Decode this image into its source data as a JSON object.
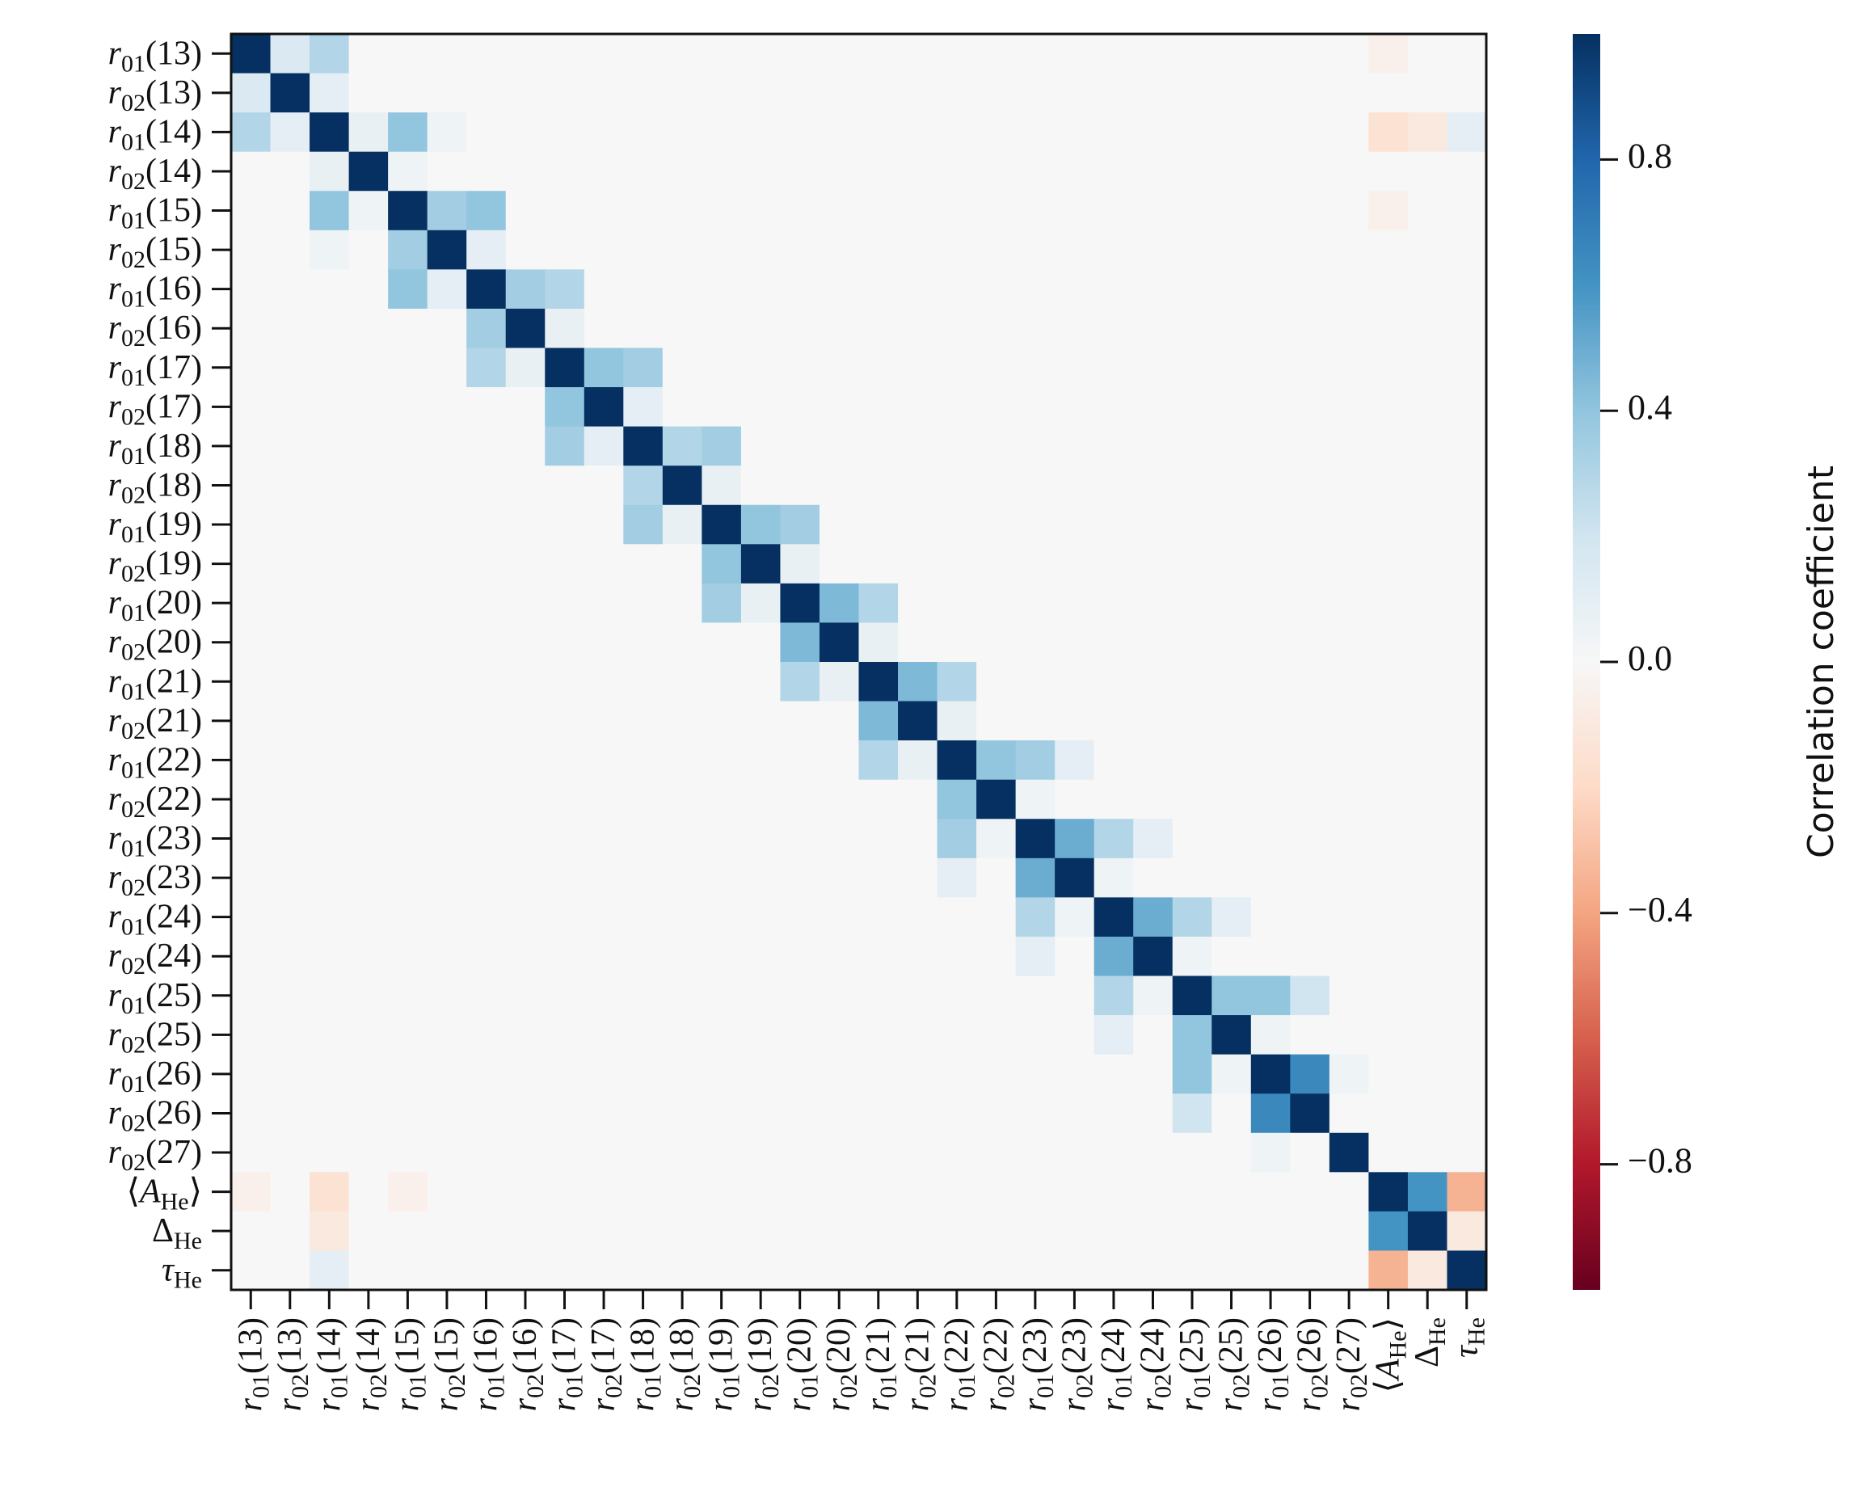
{
  "chart_data": {
    "type": "heatmap",
    "colormap": "RdBu",
    "x_categories": [
      "r01(13)",
      "r02(13)",
      "r01(14)",
      "r02(14)",
      "r01(15)",
      "r02(15)",
      "r01(16)",
      "r02(16)",
      "r01(17)",
      "r02(17)",
      "r01(18)",
      "r02(18)",
      "r01(19)",
      "r02(19)",
      "r01(20)",
      "r02(20)",
      "r01(21)",
      "r02(21)",
      "r01(22)",
      "r02(22)",
      "r01(23)",
      "r02(23)",
      "r01(24)",
      "r02(24)",
      "r01(25)",
      "r02(25)",
      "r01(26)",
      "r02(26)",
      "r02(27)",
      "⟨AHe⟩",
      "ΔHe",
      "τHe"
    ],
    "y_categories": [
      "r01(13)",
      "r02(13)",
      "r01(14)",
      "r02(14)",
      "r01(15)",
      "r02(15)",
      "r01(16)",
      "r02(16)",
      "r01(17)",
      "r02(17)",
      "r01(18)",
      "r02(18)",
      "r01(19)",
      "r02(19)",
      "r01(20)",
      "r02(20)",
      "r01(21)",
      "r02(21)",
      "r01(22)",
      "r02(22)",
      "r01(23)",
      "r02(23)",
      "r01(24)",
      "r02(24)",
      "r01(25)",
      "r02(25)",
      "r01(26)",
      "r02(26)",
      "r02(27)",
      "⟨AHe⟩",
      "ΔHe",
      "τHe"
    ],
    "values": [
      [
        1,
        0.15,
        0.3,
        0,
        0,
        0,
        0,
        0,
        0,
        0,
        0,
        0,
        0,
        0,
        0,
        0,
        0,
        0,
        0,
        0,
        0,
        0,
        0,
        0,
        0,
        0,
        0,
        0,
        0,
        -0.05,
        0,
        0
      ],
      [
        0.15,
        1,
        0.1,
        0,
        0,
        0,
        0,
        0,
        0,
        0,
        0,
        0,
        0,
        0,
        0,
        0,
        0,
        0,
        0,
        0,
        0,
        0,
        0,
        0,
        0,
        0,
        0,
        0,
        0,
        0,
        0,
        0
      ],
      [
        0.3,
        0.1,
        1,
        0.08,
        0.4,
        0.05,
        0,
        0,
        0,
        0,
        0,
        0,
        0,
        0,
        0,
        0,
        0,
        0,
        0,
        0,
        0,
        0,
        0,
        0,
        0,
        0,
        0,
        0,
        0,
        -0.15,
        -0.1,
        0.1
      ],
      [
        0,
        0,
        0.08,
        1,
        0.05,
        0,
        0,
        0,
        0,
        0,
        0,
        0,
        0,
        0,
        0,
        0,
        0,
        0,
        0,
        0,
        0,
        0,
        0,
        0,
        0,
        0,
        0,
        0,
        0,
        0,
        0,
        0
      ],
      [
        0,
        0,
        0.4,
        0.05,
        1,
        0.35,
        0.4,
        0,
        0,
        0,
        0,
        0,
        0,
        0,
        0,
        0,
        0,
        0,
        0,
        0,
        0,
        0,
        0,
        0,
        0,
        0,
        0,
        0,
        0,
        -0.05,
        0,
        0
      ],
      [
        0,
        0,
        0.05,
        0,
        0.35,
        1,
        0.1,
        0,
        0,
        0,
        0,
        0,
        0,
        0,
        0,
        0,
        0,
        0,
        0,
        0,
        0,
        0,
        0,
        0,
        0,
        0,
        0,
        0,
        0,
        0,
        0,
        0
      ],
      [
        0,
        0,
        0,
        0,
        0.4,
        0.1,
        1,
        0.35,
        0.3,
        0,
        0,
        0,
        0,
        0,
        0,
        0,
        0,
        0,
        0,
        0,
        0,
        0,
        0,
        0,
        0,
        0,
        0,
        0,
        0,
        0,
        0,
        0
      ],
      [
        0,
        0,
        0,
        0,
        0,
        0,
        0.35,
        1,
        0.08,
        0,
        0,
        0,
        0,
        0,
        0,
        0,
        0,
        0,
        0,
        0,
        0,
        0,
        0,
        0,
        0,
        0,
        0,
        0,
        0,
        0,
        0,
        0
      ],
      [
        0,
        0,
        0,
        0,
        0,
        0,
        0.3,
        0.08,
        1,
        0.4,
        0.35,
        0,
        0,
        0,
        0,
        0,
        0,
        0,
        0,
        0,
        0,
        0,
        0,
        0,
        0,
        0,
        0,
        0,
        0,
        0,
        0,
        0
      ],
      [
        0,
        0,
        0,
        0,
        0,
        0,
        0,
        0,
        0.4,
        1,
        0.1,
        0,
        0,
        0,
        0,
        0,
        0,
        0,
        0,
        0,
        0,
        0,
        0,
        0,
        0,
        0,
        0,
        0,
        0,
        0,
        0,
        0
      ],
      [
        0,
        0,
        0,
        0,
        0,
        0,
        0,
        0,
        0.35,
        0.1,
        1,
        0.3,
        0.35,
        0,
        0,
        0,
        0,
        0,
        0,
        0,
        0,
        0,
        0,
        0,
        0,
        0,
        0,
        0,
        0,
        0,
        0,
        0
      ],
      [
        0,
        0,
        0,
        0,
        0,
        0,
        0,
        0,
        0,
        0,
        0.3,
        1,
        0.08,
        0,
        0,
        0,
        0,
        0,
        0,
        0,
        0,
        0,
        0,
        0,
        0,
        0,
        0,
        0,
        0,
        0,
        0,
        0
      ],
      [
        0,
        0,
        0,
        0,
        0,
        0,
        0,
        0,
        0,
        0,
        0.35,
        0.08,
        1,
        0.4,
        0.35,
        0,
        0,
        0,
        0,
        0,
        0,
        0,
        0,
        0,
        0,
        0,
        0,
        0,
        0,
        0,
        0,
        0
      ],
      [
        0,
        0,
        0,
        0,
        0,
        0,
        0,
        0,
        0,
        0,
        0,
        0,
        0.4,
        1,
        0.08,
        0,
        0,
        0,
        0,
        0,
        0,
        0,
        0,
        0,
        0,
        0,
        0,
        0,
        0,
        0,
        0,
        0
      ],
      [
        0,
        0,
        0,
        0,
        0,
        0,
        0,
        0,
        0,
        0,
        0,
        0,
        0.35,
        0.08,
        1,
        0.45,
        0.3,
        0,
        0,
        0,
        0,
        0,
        0,
        0,
        0,
        0,
        0,
        0,
        0,
        0,
        0,
        0
      ],
      [
        0,
        0,
        0,
        0,
        0,
        0,
        0,
        0,
        0,
        0,
        0,
        0,
        0,
        0,
        0.45,
        1,
        0.08,
        0,
        0,
        0,
        0,
        0,
        0,
        0,
        0,
        0,
        0,
        0,
        0,
        0,
        0,
        0
      ],
      [
        0,
        0,
        0,
        0,
        0,
        0,
        0,
        0,
        0,
        0,
        0,
        0,
        0,
        0,
        0.3,
        0.08,
        1,
        0.45,
        0.3,
        0,
        0,
        0,
        0,
        0,
        0,
        0,
        0,
        0,
        0,
        0,
        0,
        0
      ],
      [
        0,
        0,
        0,
        0,
        0,
        0,
        0,
        0,
        0,
        0,
        0,
        0,
        0,
        0,
        0,
        0,
        0.45,
        1,
        0.08,
        0,
        0,
        0,
        0,
        0,
        0,
        0,
        0,
        0,
        0,
        0,
        0,
        0
      ],
      [
        0,
        0,
        0,
        0,
        0,
        0,
        0,
        0,
        0,
        0,
        0,
        0,
        0,
        0,
        0,
        0,
        0.3,
        0.08,
        1,
        0.4,
        0.35,
        0.1,
        0,
        0,
        0,
        0,
        0,
        0,
        0,
        0,
        0,
        0
      ],
      [
        0,
        0,
        0,
        0,
        0,
        0,
        0,
        0,
        0,
        0,
        0,
        0,
        0,
        0,
        0,
        0,
        0,
        0,
        0.4,
        1,
        0.05,
        0,
        0,
        0,
        0,
        0,
        0,
        0,
        0,
        0,
        0,
        0
      ],
      [
        0,
        0,
        0,
        0,
        0,
        0,
        0,
        0,
        0,
        0,
        0,
        0,
        0,
        0,
        0,
        0,
        0,
        0,
        0.35,
        0.05,
        1,
        0.5,
        0.3,
        0.1,
        0,
        0,
        0,
        0,
        0,
        0,
        0,
        0
      ],
      [
        0,
        0,
        0,
        0,
        0,
        0,
        0,
        0,
        0,
        0,
        0,
        0,
        0,
        0,
        0,
        0,
        0,
        0,
        0.1,
        0,
        0.5,
        1,
        0.05,
        0,
        0,
        0,
        0,
        0,
        0,
        0,
        0,
        0
      ],
      [
        0,
        0,
        0,
        0,
        0,
        0,
        0,
        0,
        0,
        0,
        0,
        0,
        0,
        0,
        0,
        0,
        0,
        0,
        0,
        0,
        0.3,
        0.05,
        1,
        0.5,
        0.3,
        0.1,
        0,
        0,
        0,
        0,
        0,
        0
      ],
      [
        0,
        0,
        0,
        0,
        0,
        0,
        0,
        0,
        0,
        0,
        0,
        0,
        0,
        0,
        0,
        0,
        0,
        0,
        0,
        0,
        0.1,
        0,
        0.5,
        1,
        0.05,
        0,
        0,
        0,
        0,
        0,
        0,
        0
      ],
      [
        0,
        0,
        0,
        0,
        0,
        0,
        0,
        0,
        0,
        0,
        0,
        0,
        0,
        0,
        0,
        0,
        0,
        0,
        0,
        0,
        0,
        0,
        0.3,
        0.05,
        1,
        0.4,
        0.4,
        0.2,
        0,
        0,
        0,
        0
      ],
      [
        0,
        0,
        0,
        0,
        0,
        0,
        0,
        0,
        0,
        0,
        0,
        0,
        0,
        0,
        0,
        0,
        0,
        0,
        0,
        0,
        0,
        0,
        0.1,
        0,
        0.4,
        1,
        0.05,
        0,
        0,
        0,
        0,
        0
      ],
      [
        0,
        0,
        0,
        0,
        0,
        0,
        0,
        0,
        0,
        0,
        0,
        0,
        0,
        0,
        0,
        0,
        0,
        0,
        0,
        0,
        0,
        0,
        0,
        0,
        0.4,
        0.05,
        1,
        0.65,
        0.05,
        0,
        0,
        0
      ],
      [
        0,
        0,
        0,
        0,
        0,
        0,
        0,
        0,
        0,
        0,
        0,
        0,
        0,
        0,
        0,
        0,
        0,
        0,
        0,
        0,
        0,
        0,
        0,
        0,
        0.2,
        0,
        0.65,
        1,
        0,
        0,
        0,
        0
      ],
      [
        0,
        0,
        0,
        0,
        0,
        0,
        0,
        0,
        0,
        0,
        0,
        0,
        0,
        0,
        0,
        0,
        0,
        0,
        0,
        0,
        0,
        0,
        0,
        0,
        0,
        0,
        0.05,
        0,
        1,
        0,
        0,
        0
      ],
      [
        -0.05,
        0,
        -0.15,
        0,
        -0.05,
        0,
        0,
        0,
        0,
        0,
        0,
        0,
        0,
        0,
        0,
        0,
        0,
        0,
        0,
        0,
        0,
        0,
        0,
        0,
        0,
        0,
        0,
        0,
        0,
        1,
        0.6,
        -0.35
      ],
      [
        0,
        0,
        -0.1,
        0,
        0,
        0,
        0,
        0,
        0,
        0,
        0,
        0,
        0,
        0,
        0,
        0,
        0,
        0,
        0,
        0,
        0,
        0,
        0,
        0,
        0,
        0,
        0,
        0,
        0,
        0.6,
        1,
        -0.1
      ],
      [
        0,
        0,
        0.1,
        0,
        0,
        0,
        0,
        0,
        0,
        0,
        0,
        0,
        0,
        0,
        0,
        0,
        0,
        0,
        0,
        0,
        0,
        0,
        0,
        0,
        0,
        0,
        0,
        0,
        0,
        -0.35,
        -0.1,
        1
      ]
    ],
    "colorbar": {
      "label": "Correlation coefficient",
      "lim": [
        -1,
        1
      ],
      "ticks": [
        {
          "value": -0.8,
          "label": "−0.8"
        },
        {
          "value": -0.4,
          "label": "−0.4"
        },
        {
          "value": 0,
          "label": "0.0"
        },
        0.4,
        0.8
      ]
    }
  }
}
